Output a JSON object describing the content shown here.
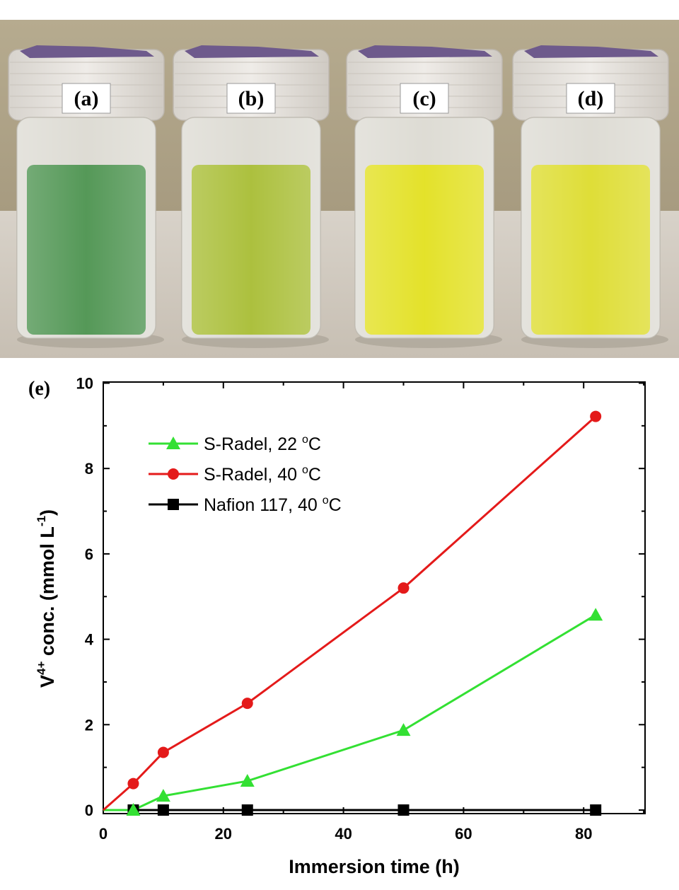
{
  "photo": {
    "vials": [
      {
        "label": "(a)",
        "liquid_color": "#3f8d43"
      },
      {
        "label": "(b)",
        "liquid_color": "#a3bb26"
      },
      {
        "label": "(c)",
        "liquid_color": "#e2e10f"
      },
      {
        "label": "(d)",
        "liquid_color": "#dcdc1e"
      }
    ]
  },
  "chart_data": {
    "type": "line",
    "panel_label": "(e)",
    "xlabel": "Immersion time (h)",
    "ylabel_parts": {
      "base": "V",
      "sup": "4+",
      "rest": " conc. (mmol L",
      "sup2": "-1",
      "end": ")"
    },
    "xlim": [
      0,
      90
    ],
    "ylim": [
      0,
      10
    ],
    "x_ticks": [
      "0",
      "20",
      "40",
      "60",
      "80"
    ],
    "y_ticks": [
      "0",
      "2",
      "4",
      "6",
      "8",
      "10"
    ],
    "legend_position": "top-left",
    "series": [
      {
        "name": "S-Radel, 22 °C",
        "legend_main": "S-Radel, 22 ",
        "legend_unit": "C",
        "color": "#33e033",
        "marker": "triangle",
        "x": [
          0,
          5,
          10,
          24,
          50,
          82
        ],
        "y": [
          0,
          0,
          0.33,
          0.68,
          1.87,
          4.57
        ]
      },
      {
        "name": "S-Radel, 40 °C",
        "legend_main": "S-Radel, 40 ",
        "legend_unit": "C",
        "color": "#e41a1a",
        "marker": "circle",
        "x": [
          0,
          5,
          10,
          24,
          50,
          82
        ],
        "y": [
          0,
          0.62,
          1.35,
          2.5,
          5.2,
          9.22
        ]
      },
      {
        "name": "Nafion 117, 40 °C",
        "legend_main": "Nafion 117, 40 ",
        "legend_unit": "C",
        "color": "#000000",
        "marker": "square",
        "x": [
          0,
          5,
          10,
          24,
          50,
          82
        ],
        "y": [
          0,
          0,
          0,
          0,
          0,
          0
        ]
      }
    ]
  }
}
